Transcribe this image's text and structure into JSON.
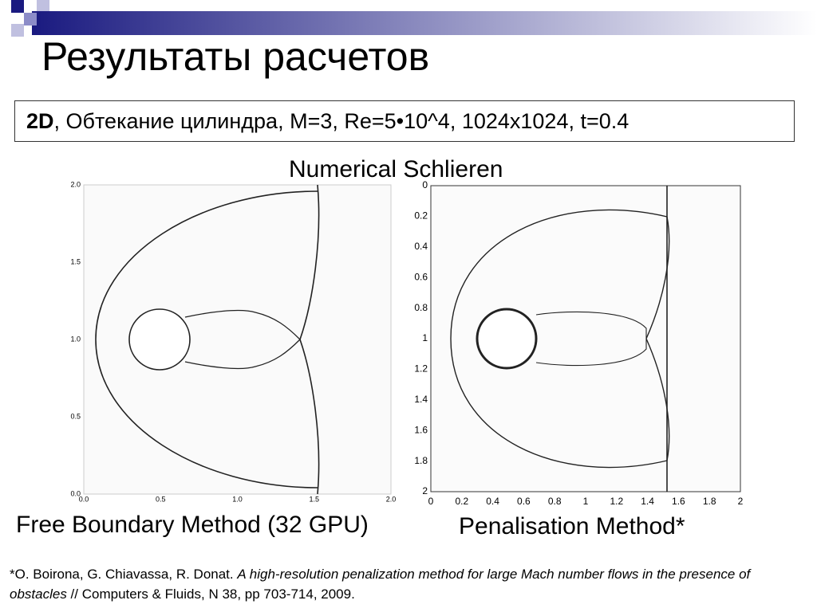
{
  "header": {
    "title": "Результаты расчетов"
  },
  "subtitle": {
    "bold": "2D",
    "text": ", Обтекание цилиндра, M=3, Re=5•10^4, 1024x1024, t=0.4"
  },
  "section_label": "Numerical Schlieren",
  "left_panel": {
    "yticks": [
      "2.0",
      "1.5",
      "1.0",
      "0.5",
      "0.0"
    ],
    "xticks": [
      "0.0",
      "0.5",
      "1.0",
      "1.5",
      "2.0"
    ],
    "caption": "Free Boundary Method (32 GPU)"
  },
  "right_panel": {
    "yticks": [
      "0",
      "0.2",
      "0.4",
      "0.6",
      "0.8",
      "1",
      "1.2",
      "1.4",
      "1.6",
      "1.8",
      "2"
    ],
    "xticks": [
      "0",
      "0.2",
      "0.4",
      "0.6",
      "0.8",
      "1",
      "1.2",
      "1.4",
      "1.6",
      "1.8",
      "2"
    ],
    "caption": "Penalisation Method*"
  },
  "footnote": {
    "authors": "*O. Boirona, G. Chiavassa, R. Donat. ",
    "title": "A high-resolution penalization method for large Mach number flows in the presence of obstacles",
    "source": " // Computers & Fluids, N 38, pp 703-714, 2009."
  }
}
